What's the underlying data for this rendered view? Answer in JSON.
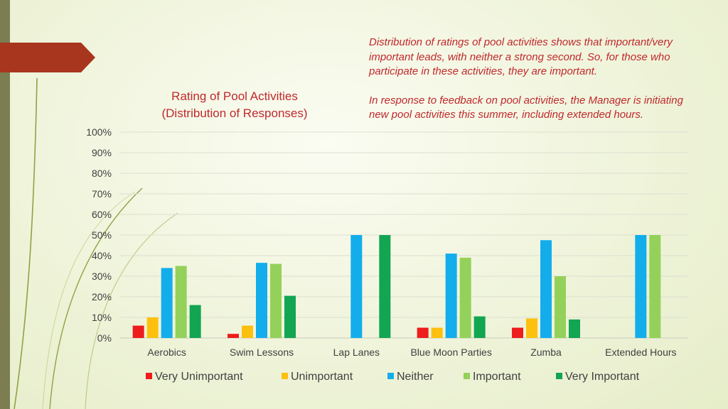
{
  "chart_data": {
    "type": "bar",
    "title": [
      "Rating of Pool Activities",
      "(Distribution of Responses)"
    ],
    "categories": [
      "Aerobics",
      "Swim Lessons",
      "Lap Lanes",
      "Blue Moon Parties",
      "Zumba",
      "Extended Hours"
    ],
    "series": [
      {
        "name": "Very Unimportant",
        "color": "#ee1c1c",
        "values": [
          6,
          2,
          0,
          5,
          5,
          0
        ]
      },
      {
        "name": "Unimportant",
        "color": "#fdc00f",
        "values": [
          10,
          6,
          0,
          5,
          9.5,
          0
        ]
      },
      {
        "name": "Neither",
        "color": "#13adec",
        "values": [
          34,
          36.5,
          50,
          41,
          47.5,
          50
        ]
      },
      {
        "name": "Important",
        "color": "#94d15a",
        "values": [
          35,
          36,
          0,
          39,
          30,
          50
        ]
      },
      {
        "name": "Very Important",
        "color": "#12a552",
        "values": [
          16,
          20.5,
          50,
          10.5,
          9,
          0
        ]
      }
    ],
    "yticks": [
      "0%",
      "10%",
      "20%",
      "30%",
      "40%",
      "50%",
      "60%",
      "70%",
      "80%",
      "90%",
      "100%"
    ],
    "ylim": [
      0,
      100
    ],
    "grid": true,
    "legend": "bottom"
  },
  "notes": [
    "Distribution of ratings of pool activities shows that important/very important leads, with neither a strong second. So, for those who participate in these activities, they are important.",
    "In response to feedback on pool activities, the Manager is initiating new pool activities this summer, including extended hours."
  ],
  "colors": {
    "accent": "#c0282d",
    "tab": "#a8361e",
    "bar": "#7d7d52"
  }
}
